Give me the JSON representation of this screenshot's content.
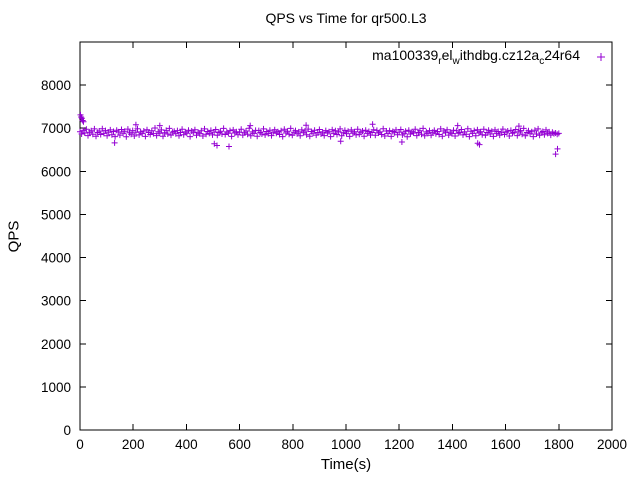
{
  "chart_data": {
    "type": "scatter",
    "title": "QPS vs Time for qr500.L3",
    "xlabel": "Time(s)",
    "ylabel": "QPS",
    "xlim": [
      0,
      2000
    ],
    "ylim": [
      0,
      9000
    ],
    "xticks": [
      0,
      200,
      400,
      600,
      800,
      1000,
      1200,
      1400,
      1600,
      1800,
      2000
    ],
    "yticks": [
      0,
      1000,
      2000,
      3000,
      4000,
      5000,
      6000,
      7000,
      8000
    ],
    "grid": false,
    "legend_position": "top-right-inside",
    "marker": "plus",
    "color": "#9400D3",
    "legend_label_plain": "ma100339_rel_withdbg.cz12a_c24r64",
    "legend_parts": [
      {
        "text": "ma100339",
        "sub": false
      },
      {
        "text": "r",
        "sub": true
      },
      {
        "text": "el",
        "sub": false
      },
      {
        "text": "w",
        "sub": true
      },
      {
        "text": "ithdbg.cz12a",
        "sub": false
      },
      {
        "text": "c",
        "sub": true
      },
      {
        "text": "24r64",
        "sub": false
      }
    ],
    "series": [
      {
        "name": "ma100339_rel_withdbg.cz12a_c24r64",
        "x_start": 0,
        "x_step": 6,
        "y": [
          6920,
          6865,
          6950,
          6890,
          6975,
          6830,
          6905,
          6940,
          6860,
          6985,
          6815,
          6900,
          6935,
          6855,
          6990,
          6880,
          6945,
          6825,
          6910,
          6960,
          6850,
          6925,
          6805,
          6955,
          6915,
          6840,
          6970,
          6885,
          6930,
          6800,
          6980,
          6895,
          6860,
          6945,
          6820,
          6905,
          6990,
          6845,
          6915,
          6875,
          6935,
          6810,
          6965,
          6900,
          6855,
          6940,
          6875,
          7005,
          6830,
          6920,
          6885,
          6960,
          6815,
          6895,
          6950,
          6865,
          6995,
          6840,
          6910,
          6930,
          6870,
          6945,
          6825,
          6900,
          6975,
          6850,
          6915,
          6885,
          6955,
          6805,
          6935,
          6895,
          6965,
          6835,
          6905,
          6870,
          6940,
          6820,
          6985,
          6860,
          6925,
          6880,
          6950,
          6845,
          6910,
          6970,
          6835,
          6900,
          6930,
          6865,
          6995,
          6855,
          6915,
          6885,
          6945,
          6810,
          6960,
          6890,
          6920,
          6850,
          6905,
          6975,
          6840,
          6895,
          6935,
          6860,
          7000,
          6825,
          6915,
          6880,
          6950,
          6815,
          6945,
          6900,
          6865,
          6985,
          6845,
          6925,
          6875,
          6955,
          6830,
          6910,
          6965,
          6885,
          6920,
          6855,
          6940,
          6805,
          6975,
          6890,
          6930,
          6860,
          6995,
          6835,
          6905,
          6945,
          6870,
          6915,
          6825,
          6960,
          6895,
          6935,
          6850,
          6980,
          6815,
          6925,
          6885,
          6955,
          6840,
          6900,
          6970,
          6865,
          6910,
          6830,
          6945,
          6890,
          6920,
          6805,
          6965,
          6875,
          6940,
          6855,
          6915,
          6985,
          6825,
          6895,
          6950,
          6870,
          6930,
          6810,
          6960,
          6885,
          6920,
          6845,
          6975,
          6860,
          6905,
          6935,
          6815,
          6955,
          6880,
          6925,
          6840,
          6900,
          6965,
          6835,
          6950,
          6890,
          6915,
          6855,
          6990,
          6820,
          6935,
          6875,
          6945,
          6810,
          6925,
          6895,
          6960,
          6850,
          6910,
          6970,
          6845,
          6885,
          6930,
          6800,
          6955,
          6865,
          6920,
          6890,
          6975,
          6830,
          6900,
          6940,
          6860,
          6995,
          6825,
          6915,
          6880,
          6945,
          6835,
          6905,
          6950,
          6870,
          6925,
          6855,
          6985,
          6815,
          6935,
          6895,
          6965,
          6840,
          6910,
          6875,
          6955,
          6820,
          6940,
          6885,
          6900,
          6970,
          6845,
          6915,
          6860,
          6990,
          6805,
          6930,
          6880,
          6945,
          6825,
          6965,
          6890,
          6920,
          6850,
          6975,
          6835,
          6900,
          6955,
          6865,
          6930,
          6810,
          6960,
          6875,
          6925,
          6840,
          6895,
          6980,
          6855,
          6910,
          6935,
          6820,
          6950,
          6885,
          6905,
          6970,
          6830,
          6915,
          6945,
          6860,
          6995,
          6825,
          6900,
          6940,
          6870,
          6920,
          6805,
          6955,
          6865,
          6985,
          6835,
          6895,
          6925,
          6850,
          6960,
          6880,
          6915,
          6840,
          6905,
          6875,
          6890,
          6860
        ],
        "extra_points": [
          [
            2,
            7310
          ],
          [
            4,
            7260
          ],
          [
            7,
            7230
          ],
          [
            10,
            7180
          ],
          [
            13,
            7150
          ],
          [
            130,
            6660
          ],
          [
            210,
            7080
          ],
          [
            300,
            7060
          ],
          [
            505,
            6640
          ],
          [
            515,
            6600
          ],
          [
            560,
            6575
          ],
          [
            640,
            7060
          ],
          [
            850,
            7070
          ],
          [
            980,
            6700
          ],
          [
            1100,
            7090
          ],
          [
            1210,
            6680
          ],
          [
            1420,
            7060
          ],
          [
            1495,
            6650
          ],
          [
            1502,
            6620
          ],
          [
            1650,
            7050
          ],
          [
            1788,
            6400
          ],
          [
            1795,
            6520
          ],
          [
            1800,
            6880
          ]
        ]
      }
    ]
  }
}
